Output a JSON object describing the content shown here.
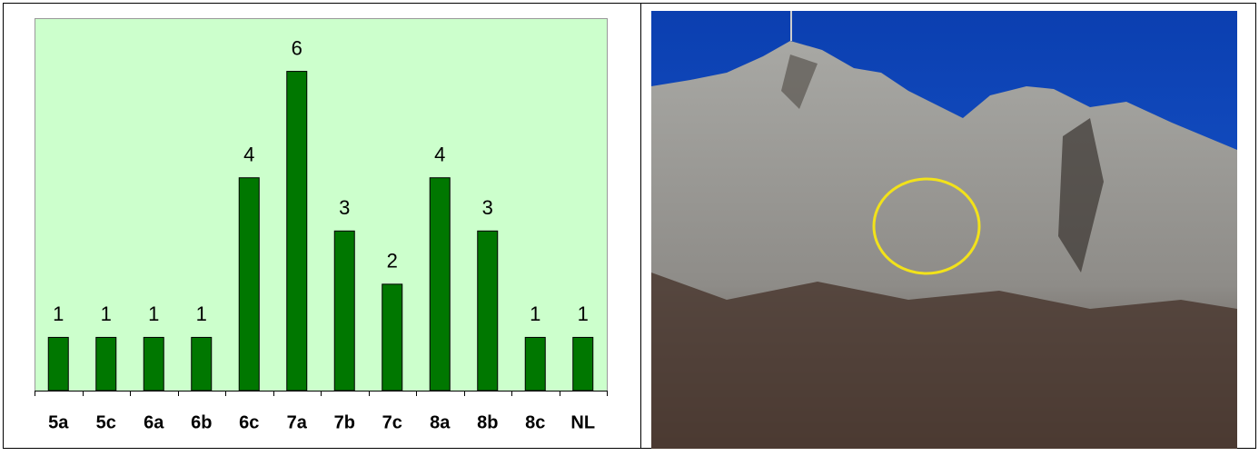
{
  "chart_data": {
    "type": "bar",
    "categories": [
      "5a",
      "5c",
      "6a",
      "6b",
      "6c",
      "7a",
      "7b",
      "7c",
      "8a",
      "8b",
      "8c",
      "NL"
    ],
    "values": [
      1,
      1,
      1,
      1,
      4,
      6,
      3,
      2,
      4,
      3,
      1,
      1
    ],
    "color": "#007700",
    "ylim": [
      0,
      7
    ]
  }
}
